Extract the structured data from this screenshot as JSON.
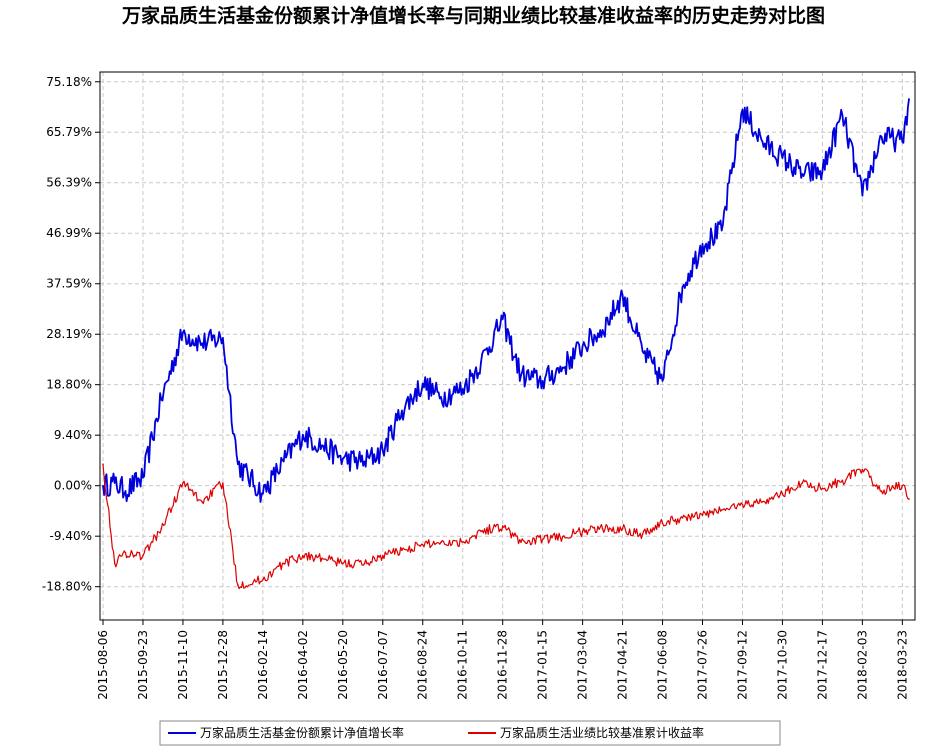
{
  "chart_data": {
    "type": "line",
    "title": "万家品质生活基金份额累计净值增长率与同期业绩比较基准收益率的历史走势对比图",
    "y_ticks": [
      "75.18%",
      "65.79%",
      "56.39%",
      "46.99%",
      "37.59%",
      "28.19%",
      "18.80%",
      "9.40%",
      "0.00%",
      "-9.40%",
      "-18.80%"
    ],
    "ylim": [
      -25,
      77
    ],
    "grid": true,
    "legend_position": "bottom",
    "x": [
      "2015-08-06",
      "2015-08-20",
      "2015-09-02",
      "2015-09-23",
      "2015-10-15",
      "2015-11-10",
      "2015-12-03",
      "2015-12-28",
      "2016-01-15",
      "2016-02-14",
      "2016-03-10",
      "2016-04-02",
      "2016-04-25",
      "2016-05-20",
      "2016-06-15",
      "2016-07-07",
      "2016-07-30",
      "2016-08-24",
      "2016-09-15",
      "2016-10-11",
      "2016-11-02",
      "2016-11-28",
      "2016-12-20",
      "2017-01-15",
      "2017-02-08",
      "2017-03-04",
      "2017-03-28",
      "2017-04-21",
      "2017-05-15",
      "2017-06-08",
      "2017-07-02",
      "2017-07-26",
      "2017-08-18",
      "2017-09-12",
      "2017-10-06",
      "2017-10-30",
      "2017-11-23",
      "2017-12-17",
      "2018-01-10",
      "2018-02-03",
      "2018-02-26",
      "2018-03-23",
      "2018-03-31"
    ],
    "x_tick_labels": [
      "2015-08-06",
      "2015-09-23",
      "2015-11-10",
      "2015-12-28",
      "2016-02-14",
      "2016-04-02",
      "2016-05-20",
      "2016-07-07",
      "2016-08-24",
      "2016-10-11",
      "2016-11-28",
      "2017-01-15",
      "2017-03-04",
      "2017-04-21",
      "2017-06-08",
      "2017-07-26",
      "2017-09-12",
      "2017-10-30",
      "2017-12-17",
      "2018-02-03",
      "2018-03-23"
    ],
    "series": [
      {
        "name": "万家品质生活基金份额累计净值增长率",
        "color": "#0000dd",
        "values": [
          0.0,
          0.5,
          -1.0,
          1.5,
          16.0,
          28.5,
          26.5,
          27.5,
          4.0,
          -1.5,
          4.5,
          9.5,
          7.5,
          5.0,
          4.5,
          6.5,
          14.0,
          19.0,
          16.5,
          18.0,
          23.0,
          31.0,
          20.5,
          19.5,
          22.0,
          26.0,
          29.0,
          35.5,
          25.0,
          19.5,
          37.0,
          45.0,
          47.5,
          70.0,
          64.0,
          61.0,
          58.0,
          58.5,
          69.0,
          54.0,
          65.0,
          64.0,
          72.0
        ]
      },
      {
        "name": "万家品质生活业绩比较基准累计收益率",
        "color": "#dd0000",
        "values": [
          4.0,
          -14.5,
          -12.5,
          -13.0,
          -8.0,
          0.5,
          -3.0,
          0.5,
          -18.5,
          -17.5,
          -14.5,
          -13.0,
          -13.5,
          -14.5,
          -14.5,
          -13.0,
          -12.0,
          -11.0,
          -10.5,
          -10.5,
          -8.5,
          -7.5,
          -10.5,
          -10.0,
          -9.5,
          -8.5,
          -8.0,
          -8.0,
          -9.0,
          -7.0,
          -6.0,
          -5.5,
          -4.5,
          -3.5,
          -3.0,
          -1.5,
          0.5,
          -0.5,
          1.0,
          3.0,
          -1.0,
          0.0,
          -2.5
        ]
      }
    ]
  }
}
